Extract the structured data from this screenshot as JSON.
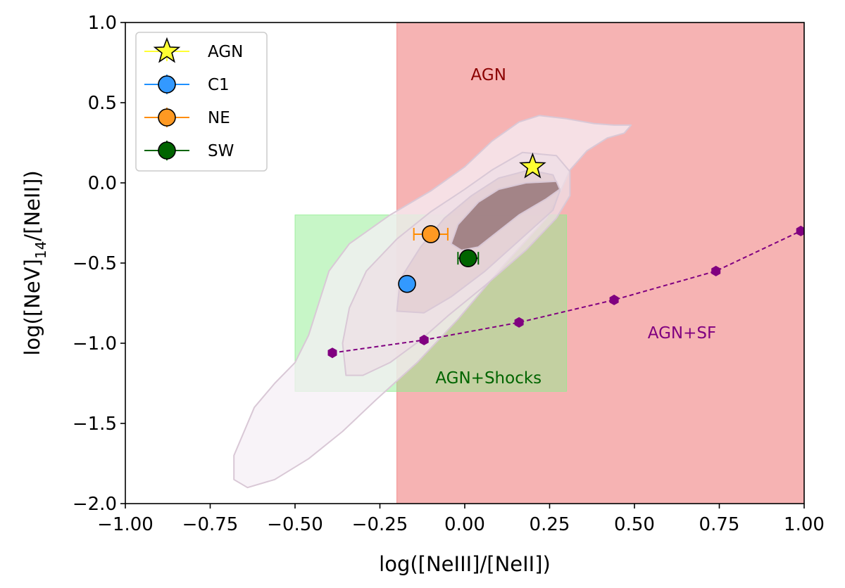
{
  "chart_data": {
    "type": "scatter",
    "xlabel": "log([NeIII]/[NeII])",
    "ylabel": {
      "pre": "log([NeV]",
      "sub": "14",
      "post": "/[NeII])"
    },
    "xlim": [
      -1.0,
      1.0
    ],
    "ylim": [
      -2.0,
      1.0
    ],
    "xticks": [
      -1.0,
      -0.75,
      -0.5,
      -0.25,
      0.0,
      0.25,
      0.5,
      0.75,
      1.0
    ],
    "xtick_labels": [
      "−1.00",
      "−0.75",
      "−0.50",
      "−0.25",
      "0.00",
      "0.25",
      "0.50",
      "0.75",
      "1.00"
    ],
    "yticks": [
      -2.0,
      -1.5,
      -1.0,
      -0.5,
      0.0,
      0.5,
      1.0
    ],
    "ytick_labels": [
      "−2.0",
      "−1.5",
      "−1.0",
      "−0.5",
      "0.0",
      "0.5",
      "1.0"
    ],
    "grid": false,
    "legend_position": "top-left",
    "regions": [
      {
        "name": "AGN",
        "label": "AGN",
        "x": [
          -0.2,
          1.0
        ],
        "y": [
          -2.0,
          1.0
        ],
        "color": "#f08080",
        "text_color": "#8b0000",
        "label_at": [
          0.07,
          0.64
        ]
      },
      {
        "name": "AGN+Shocks",
        "label": "AGN+Shocks",
        "x": [
          -0.5,
          0.3
        ],
        "y": [
          -1.3,
          -0.2
        ],
        "color": "#90ee90",
        "text_color": "#006400",
        "label_at": [
          0.07,
          -1.25
        ]
      },
      {
        "name": "AGN+SF",
        "label": "AGN+SF",
        "x": null,
        "y": null,
        "color": "#800080",
        "text_color": "#800080",
        "label_at": [
          0.64,
          -0.97
        ]
      }
    ],
    "contours": [
      {
        "level": 1,
        "color": "#f5eff5",
        "opacity": 0.75,
        "points": [
          [
            -0.68,
            -1.85
          ],
          [
            -0.68,
            -1.7
          ],
          [
            -0.65,
            -1.55
          ],
          [
            -0.62,
            -1.4
          ],
          [
            -0.56,
            -1.25
          ],
          [
            -0.5,
            -1.12
          ],
          [
            -0.46,
            -0.95
          ],
          [
            -0.43,
            -0.75
          ],
          [
            -0.4,
            -0.55
          ],
          [
            -0.34,
            -0.38
          ],
          [
            -0.22,
            -0.2
          ],
          [
            -0.1,
            -0.05
          ],
          [
            0.0,
            0.1
          ],
          [
            0.08,
            0.26
          ],
          [
            0.16,
            0.38
          ],
          [
            0.22,
            0.42
          ],
          [
            0.3,
            0.4
          ],
          [
            0.38,
            0.37
          ],
          [
            0.44,
            0.36
          ],
          [
            0.49,
            0.36
          ],
          [
            0.47,
            0.31
          ],
          [
            0.42,
            0.28
          ],
          [
            0.36,
            0.2
          ],
          [
            0.31,
            0.08
          ],
          [
            0.28,
            -0.06
          ],
          [
            0.24,
            -0.22
          ],
          [
            0.12,
            -0.5
          ],
          [
            -0.02,
            -0.85
          ],
          [
            -0.14,
            -1.12
          ],
          [
            -0.26,
            -1.35
          ],
          [
            -0.36,
            -1.55
          ],
          [
            -0.46,
            -1.72
          ],
          [
            -0.56,
            -1.85
          ],
          [
            -0.64,
            -1.9
          ]
        ]
      },
      {
        "level": 2,
        "color": "#eedfe5",
        "opacity": 0.75,
        "points": [
          [
            -0.35,
            -1.2
          ],
          [
            -0.36,
            -1.0
          ],
          [
            -0.34,
            -0.78
          ],
          [
            -0.29,
            -0.55
          ],
          [
            -0.2,
            -0.35
          ],
          [
            -0.1,
            -0.18
          ],
          [
            0.0,
            -0.04
          ],
          [
            0.08,
            0.08
          ],
          [
            0.17,
            0.19
          ],
          [
            0.27,
            0.17
          ],
          [
            0.31,
            0.07
          ],
          [
            0.31,
            -0.08
          ],
          [
            0.27,
            -0.22
          ],
          [
            0.18,
            -0.42
          ],
          [
            0.06,
            -0.64
          ],
          [
            -0.05,
            -0.83
          ],
          [
            -0.13,
            -0.98
          ],
          [
            -0.22,
            -1.12
          ],
          [
            -0.3,
            -1.2
          ]
        ]
      },
      {
        "level": 3,
        "color": "#e2ccd2",
        "opacity": 0.75,
        "points": [
          [
            -0.2,
            -0.8
          ],
          [
            -0.19,
            -0.6
          ],
          [
            -0.13,
            -0.4
          ],
          [
            -0.06,
            -0.22
          ],
          [
            0.02,
            -0.08
          ],
          [
            0.1,
            0.03
          ],
          [
            0.19,
            0.08
          ],
          [
            0.26,
            0.05
          ],
          [
            0.28,
            -0.05
          ],
          [
            0.26,
            -0.17
          ],
          [
            0.16,
            -0.36
          ],
          [
            0.06,
            -0.55
          ],
          [
            -0.04,
            -0.71
          ],
          [
            -0.12,
            -0.81
          ]
        ]
      },
      {
        "level": 4,
        "color": "#8c6a6c",
        "opacity": 0.75,
        "points": [
          [
            -0.04,
            -0.38
          ],
          [
            -0.02,
            -0.26
          ],
          [
            0.04,
            -0.12
          ],
          [
            0.1,
            -0.04
          ],
          [
            0.18,
            0.0
          ],
          [
            0.27,
            0.01
          ],
          [
            0.28,
            -0.04
          ],
          [
            0.24,
            -0.1
          ],
          [
            0.16,
            -0.2
          ],
          [
            0.1,
            -0.3
          ],
          [
            0.04,
            -0.4
          ],
          [
            -0.01,
            -0.42
          ]
        ]
      }
    ],
    "series": [
      {
        "name": "AGN",
        "marker": "star",
        "color": "#ffff33",
        "edge": "#000000",
        "x": [
          0.2
        ],
        "y": [
          0.1
        ],
        "xerr": [
          0
        ],
        "yerr": [
          0
        ]
      },
      {
        "name": "C1",
        "marker": "circle",
        "color": "#3399ff",
        "edge": "#000000",
        "err_color": "#1e90ff",
        "x": [
          -0.17
        ],
        "y": [
          -0.63
        ],
        "xerr": [
          0
        ],
        "yerr": [
          0
        ]
      },
      {
        "name": "NE",
        "marker": "circle",
        "color": "#ff9922",
        "edge": "#000000",
        "err_color": "#ff8c00",
        "x": [
          -0.1
        ],
        "y": [
          -0.32
        ],
        "xerr": [
          0.05
        ],
        "yerr": [
          0
        ]
      },
      {
        "name": "SW",
        "marker": "circle",
        "color": "#006400",
        "edge": "#000000",
        "err_color": "#006400",
        "x": [
          0.01
        ],
        "y": [
          -0.47
        ],
        "xerr": [
          0.03
        ],
        "yerr": [
          0
        ]
      }
    ],
    "agn_sf_track": {
      "color": "#800080",
      "x": [
        -0.39,
        -0.12,
        0.16,
        0.44,
        0.74,
        0.99
      ],
      "y": [
        -1.06,
        -0.98,
        -0.87,
        -0.73,
        -0.55,
        -0.3
      ]
    }
  }
}
